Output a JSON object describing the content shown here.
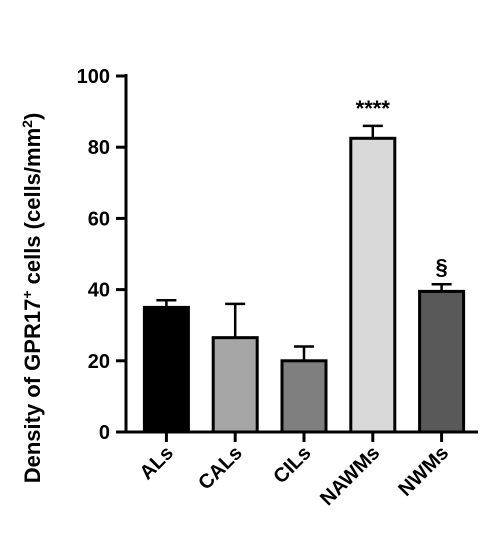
{
  "chart_data": {
    "type": "bar",
    "categories": [
      "ALs",
      "CALs",
      "CILs",
      "NAWMs",
      "NWMs"
    ],
    "values": [
      35,
      26.5,
      20,
      82.5,
      39.5
    ],
    "errors": [
      2,
      9.5,
      4,
      3.5,
      2
    ],
    "colors": [
      "#000000",
      "#a6a6a6",
      "#7f7f7f",
      "#d9d9d9",
      "#595959"
    ],
    "annotations": [
      "",
      "",
      "",
      "****",
      "§"
    ],
    "ylabel_prefix": "Density of GPR17",
    "ylabel_sup1": "+",
    "ylabel_mid": " cells (cells/mm",
    "ylabel_sup2": "2",
    "ylabel_suffix": ")",
    "ylim": [
      0,
      100
    ],
    "yticks": [
      0,
      20,
      40,
      60,
      80,
      100
    ],
    "grid": false
  }
}
